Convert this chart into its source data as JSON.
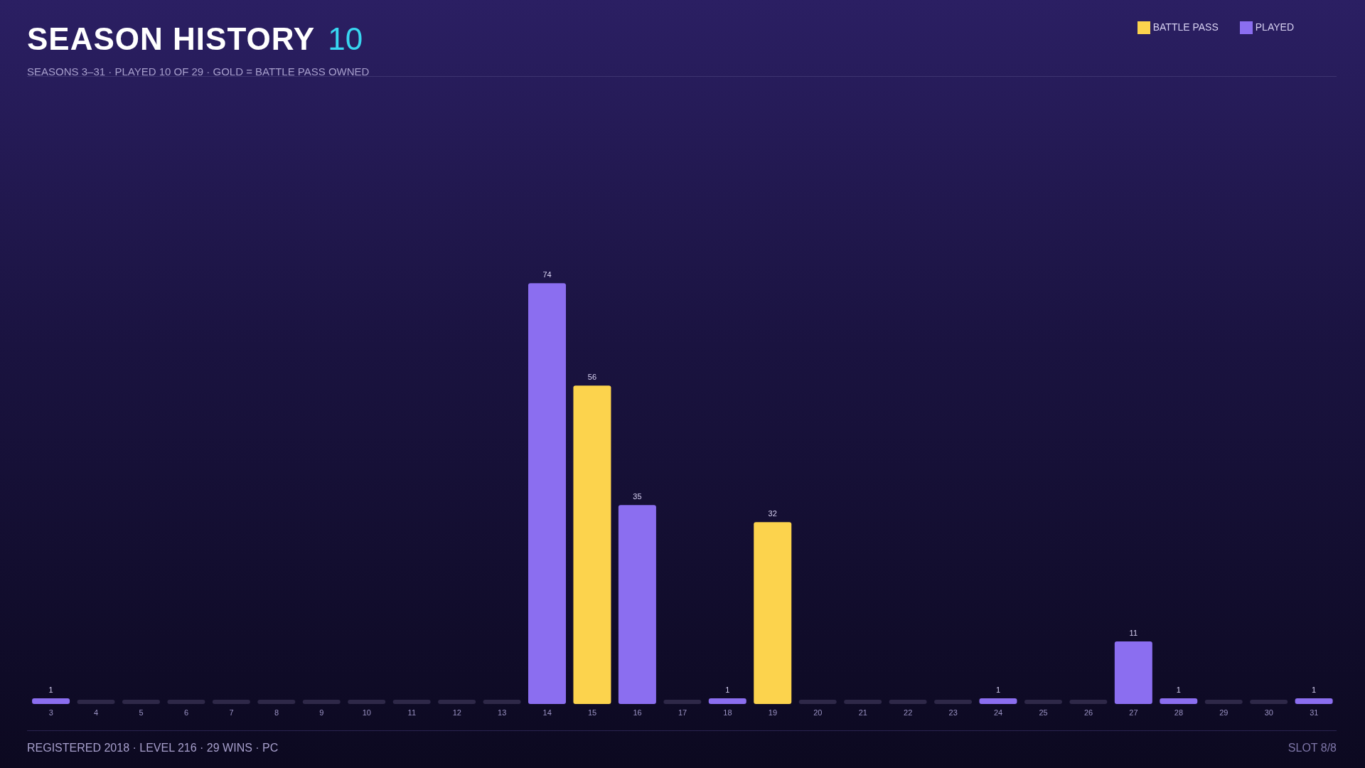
{
  "chart_data": {
    "type": "bar",
    "title": "SEASON HISTORY",
    "subtitle": "SEASONS 3–31 · PLAYED 10 OF 29 · GOLD = BATTLE PASS OWNED",
    "annotations": [
      "10",
      "REGISTERED 2018 · LEVEL 216 · 29 WINS · PC",
      "SLOT 8/8"
    ],
    "categories": [
      "3",
      "4",
      "5",
      "6",
      "7",
      "8",
      "9",
      "10",
      "11",
      "12",
      "13",
      "14",
      "15",
      "16",
      "17",
      "18",
      "19",
      "20",
      "21",
      "22",
      "23",
      "24",
      "25",
      "26",
      "27",
      "28",
      "29",
      "30",
      "31"
    ],
    "stacked": true,
    "tick_labels": "x",
    "grid": false,
    "legend": "top right",
    "series": [
      {
        "name": "BATTLE PASS",
        "color": "#fcd34d",
        "values": [
          null,
          null,
          null,
          null,
          null,
          null,
          null,
          null,
          null,
          null,
          null,
          null,
          56,
          null,
          null,
          null,
          32,
          null,
          null,
          null,
          null,
          null,
          null,
          null,
          null,
          null,
          null,
          null,
          null
        ],
        "value_labels": [
          null,
          null,
          null,
          null,
          null,
          null,
          null,
          null,
          null,
          null,
          null,
          null,
          "56",
          null,
          null,
          null,
          "32",
          null,
          null,
          null,
          null,
          null,
          null,
          null,
          null,
          null,
          null,
          null,
          null
        ]
      },
      {
        "name": "PLAYED",
        "color": "#8b6ef0",
        "values": [
          1,
          0,
          0,
          0,
          0,
          0,
          0,
          0,
          0,
          0,
          0,
          74,
          null,
          35,
          0,
          1,
          null,
          0,
          0,
          0,
          0,
          1,
          0,
          0,
          11,
          1,
          0,
          0,
          1
        ],
        "colors": [
          "#8b6ef0",
          "#2e2848",
          "#2e2848",
          "#2e2848",
          "#2e2848",
          "#2e2848",
          "#2e2848",
          "#2e2848",
          "#2e2848",
          "#2e2848",
          "#2e2848",
          "#8b6ef0",
          null,
          "#8b6ef0",
          "#2e2848",
          "#8b6ef0",
          null,
          "#2e2848",
          "#2e2848",
          "#2e2848",
          "#2e2848",
          "#8b6ef0",
          "#2e2848",
          "#2e2848",
          "#8b6ef0",
          "#8b6ef0",
          "#2e2848",
          "#2e2848",
          "#8b6ef0"
        ],
        "value_labels": [
          "1",
          null,
          null,
          null,
          null,
          null,
          null,
          null,
          null,
          null,
          null,
          "74",
          null,
          "35",
          null,
          "1",
          null,
          null,
          null,
          null,
          null,
          "1",
          null,
          null,
          "11",
          "1",
          null,
          null,
          "1"
        ]
      }
    ]
  }
}
